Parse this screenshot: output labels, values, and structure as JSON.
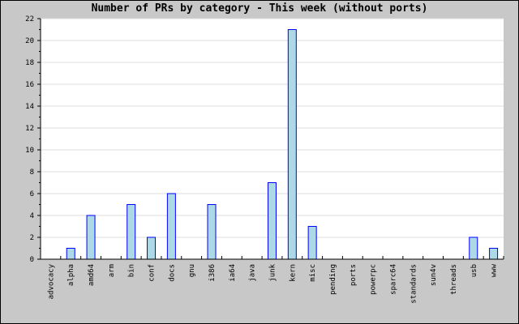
{
  "chart_data": {
    "type": "bar",
    "title": "Number of PRs by category - This week (without ports)",
    "categories": [
      "advocacy",
      "alpha",
      "amd64",
      "arm",
      "bin",
      "conf",
      "docs",
      "gnu",
      "i386",
      "ia64",
      "java",
      "junk",
      "kern",
      "misc",
      "pending",
      "ports",
      "powerpc",
      "sparc64",
      "standards",
      "sun4v",
      "threads",
      "usb",
      "www"
    ],
    "values": [
      0,
      1,
      4,
      0,
      5,
      2,
      6,
      0,
      5,
      0,
      0,
      7,
      21,
      3,
      0,
      0,
      0,
      0,
      0,
      0,
      0,
      2,
      1
    ],
    "xlabel": "",
    "ylabel": "",
    "ylim": [
      0,
      22
    ],
    "yticks": [
      0,
      2,
      4,
      6,
      8,
      10,
      12,
      14,
      16,
      18,
      20,
      22
    ],
    "grid": true,
    "colors": {
      "bar_fill": "#add8e6",
      "bar_border": "#0000ff",
      "background": "#c8c8c8",
      "plot": "#ffffff",
      "grid": "#dcdcdc"
    }
  }
}
